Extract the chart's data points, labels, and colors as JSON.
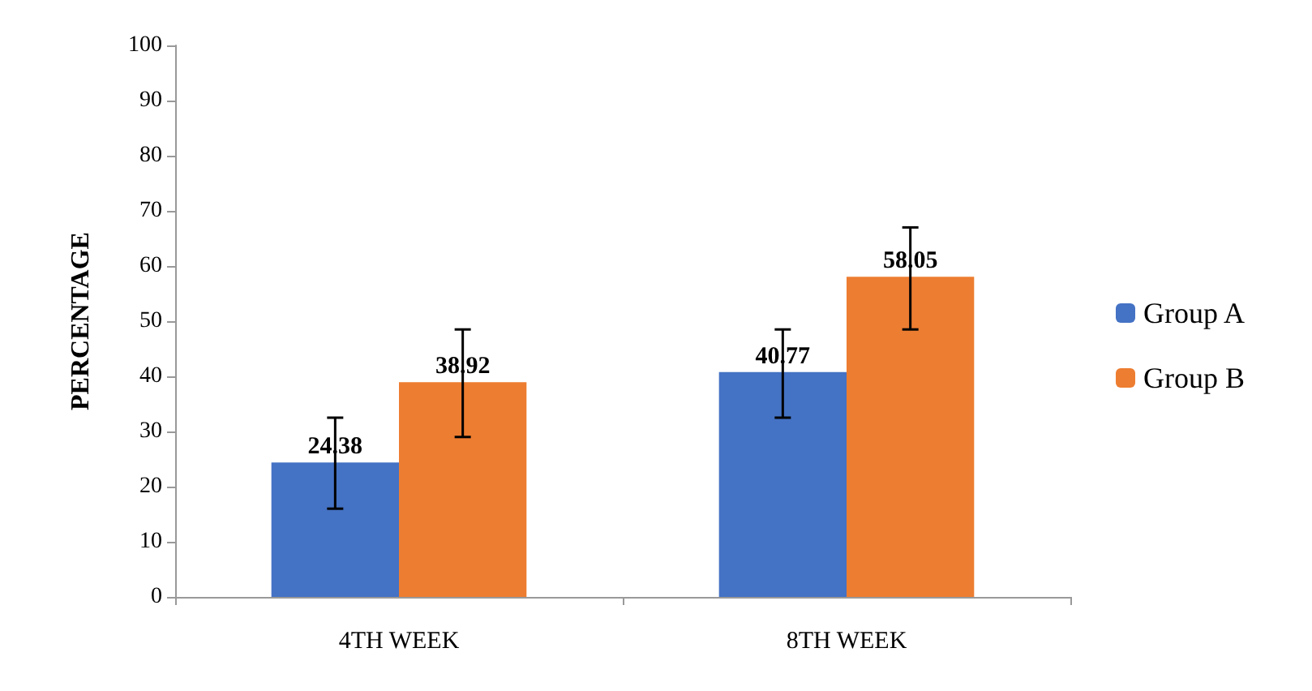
{
  "chart_data": {
    "type": "bar",
    "ylabel": "PERCENTAGE",
    "categories": [
      "4TH WEEK",
      "8TH WEEK"
    ],
    "series": [
      {
        "name": "Group A",
        "color": "#4472c4",
        "values": [
          24.38,
          40.77
        ],
        "errors": [
          [
            16,
            32.5
          ],
          [
            32.5,
            48.5
          ]
        ]
      },
      {
        "name": "Group B",
        "color": "#ed7d31",
        "values": [
          38.92,
          58.05
        ],
        "errors": [
          [
            29,
            48.5
          ],
          [
            48.5,
            67
          ]
        ]
      }
    ],
    "ylim": [
      0,
      100
    ],
    "yticks": [
      0,
      10,
      20,
      30,
      40,
      50,
      60,
      70,
      80,
      90,
      100
    ],
    "grid": false,
    "legend": "right",
    "data_labels": true
  }
}
